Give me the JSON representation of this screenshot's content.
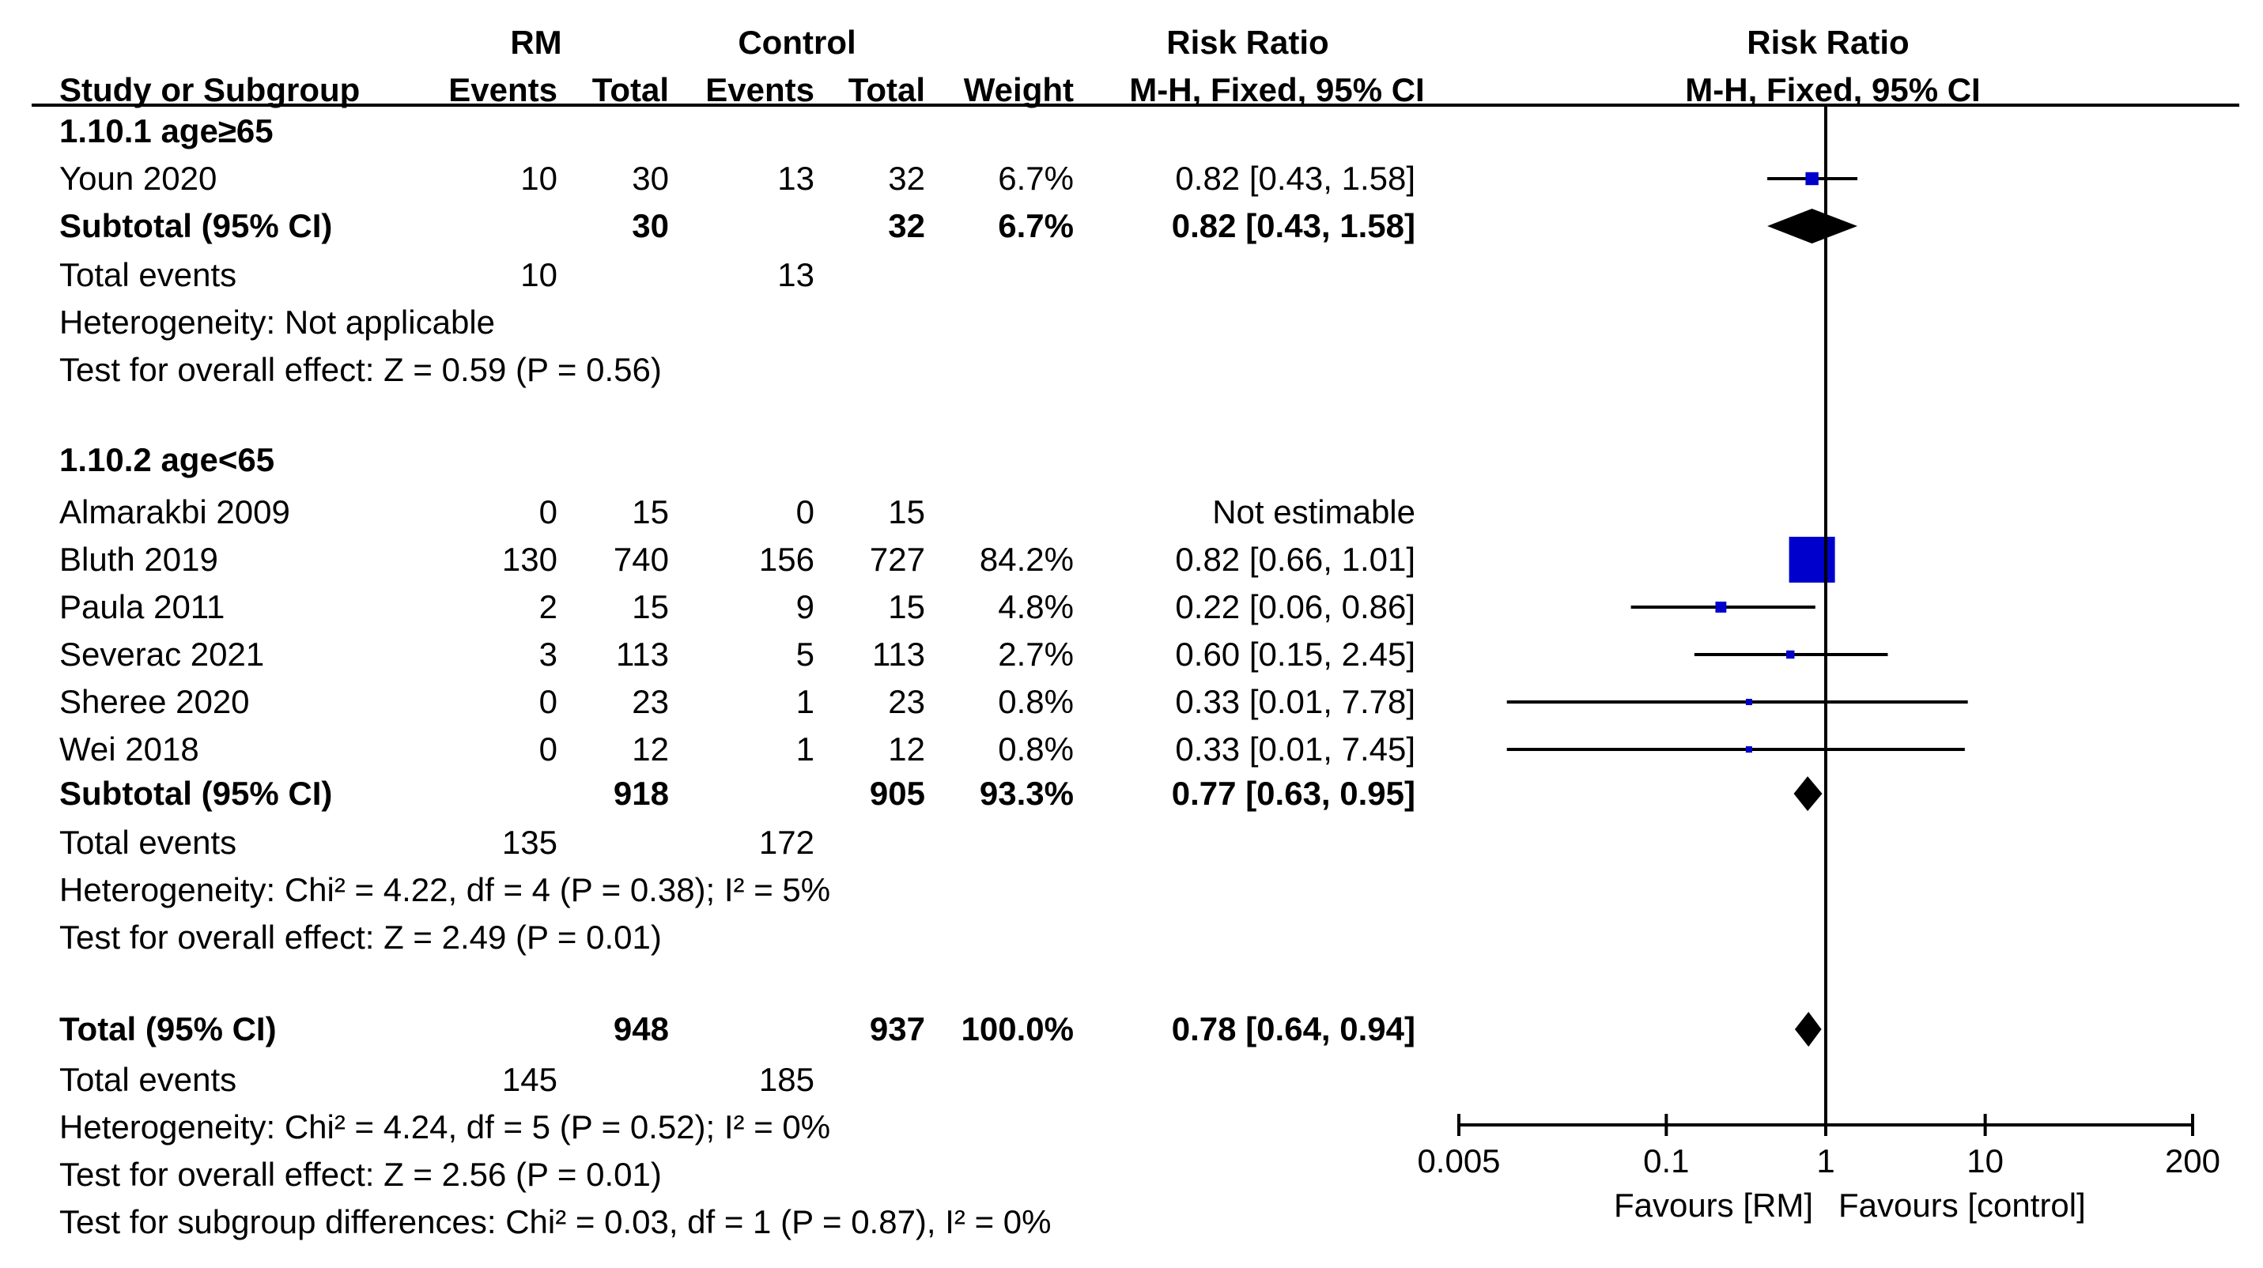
{
  "headers": {
    "group_rm": "RM",
    "group_control": "Control",
    "risk_ratio": "Risk Ratio",
    "study_or_subgroup": "Study or Subgroup",
    "events": "Events",
    "total": "Total",
    "weight": "Weight",
    "method": "M-H, Fixed, 95% CI",
    "plot_title": "Risk Ratio",
    "plot_method": "M-H, Fixed, 95% CI"
  },
  "subgroups": [
    {
      "title": "1.10.1 age≥65",
      "studies": [
        {
          "name": "Youn 2020",
          "e1": "10",
          "t1": "30",
          "e2": "13",
          "t2": "32",
          "weight": "6.7%",
          "ci_text": "0.82 [0.43, 1.58]",
          "rr": 0.82,
          "lo": 0.43,
          "hi": 1.58,
          "w": 6.7
        }
      ],
      "subtotal": {
        "label": "Subtotal (95% CI)",
        "t1": "30",
        "t2": "32",
        "weight": "6.7%",
        "ci_text": "0.82 [0.43, 1.58]",
        "rr": 0.82,
        "lo": 0.43,
        "hi": 1.58
      },
      "total_events": {
        "label": "Total events",
        "e1": "10",
        "e2": "13"
      },
      "heterogeneity": "Heterogeneity: Not applicable",
      "overall_effect": "Test for overall effect: Z = 0.59 (P = 0.56)"
    },
    {
      "title": "1.10.2 age<65",
      "studies": [
        {
          "name": "Almarakbi 2009",
          "e1": "0",
          "t1": "15",
          "e2": "0",
          "t2": "15",
          "weight": "",
          "ci_text": "Not estimable",
          "rr": null,
          "lo": null,
          "hi": null,
          "w": 0
        },
        {
          "name": "Bluth 2019",
          "e1": "130",
          "t1": "740",
          "e2": "156",
          "t2": "727",
          "weight": "84.2%",
          "ci_text": "0.82 [0.66, 1.01]",
          "rr": 0.82,
          "lo": 0.66,
          "hi": 1.01,
          "w": 84.2
        },
        {
          "name": "Paula 2011",
          "e1": "2",
          "t1": "15",
          "e2": "9",
          "t2": "15",
          "weight": "4.8%",
          "ci_text": "0.22 [0.06, 0.86]",
          "rr": 0.22,
          "lo": 0.06,
          "hi": 0.86,
          "w": 4.8
        },
        {
          "name": "Severac 2021",
          "e1": "3",
          "t1": "113",
          "e2": "5",
          "t2": "113",
          "weight": "2.7%",
          "ci_text": "0.60 [0.15, 2.45]",
          "rr": 0.6,
          "lo": 0.15,
          "hi": 2.45,
          "w": 2.7
        },
        {
          "name": "Sheree 2020",
          "e1": "0",
          "t1": "23",
          "e2": "1",
          "t2": "23",
          "weight": "0.8%",
          "ci_text": "0.33 [0.01, 7.78]",
          "rr": 0.33,
          "lo": 0.01,
          "hi": 7.78,
          "w": 0.8
        },
        {
          "name": "Wei 2018",
          "e1": "0",
          "t1": "12",
          "e2": "1",
          "t2": "12",
          "weight": "0.8%",
          "ci_text": "0.33 [0.01, 7.45]",
          "rr": 0.33,
          "lo": 0.01,
          "hi": 7.45,
          "w": 0.8
        }
      ],
      "subtotal": {
        "label": "Subtotal (95% CI)",
        "t1": "918",
        "t2": "905",
        "weight": "93.3%",
        "ci_text": "0.77 [0.63, 0.95]",
        "rr": 0.77,
        "lo": 0.63,
        "hi": 0.95
      },
      "total_events": {
        "label": "Total events",
        "e1": "135",
        "e2": "172"
      },
      "heterogeneity": "Heterogeneity: Chi² = 4.22, df = 4 (P = 0.38); I² = 5%",
      "overall_effect": "Test for overall effect: Z = 2.49 (P = 0.01)"
    }
  ],
  "overall": {
    "label": "Total (95% CI)",
    "t1": "948",
    "t2": "937",
    "weight": "100.0%",
    "ci_text": "0.78 [0.64, 0.94]",
    "rr": 0.78,
    "lo": 0.64,
    "hi": 0.94,
    "total_events": {
      "label": "Total events",
      "e1": "145",
      "e2": "185"
    },
    "heterogeneity": "Heterogeneity: Chi² = 4.24, df = 5 (P = 0.52); I² = 0%",
    "overall_effect": "Test for overall effect: Z = 2.56 (P = 0.01)",
    "subgroup_differences": "Test for subgroup differences: Chi² = 0.03, df = 1 (P = 0.87), I² = 0%"
  },
  "colors": {
    "study_marker": "#0000cc",
    "diamond": "#000000",
    "line": "#000000"
  },
  "chart_data": {
    "type": "forest",
    "title": "Risk Ratio",
    "subtitle": "M-H, Fixed, 95% CI",
    "x_scale": "log",
    "xlim": [
      0.005,
      200
    ],
    "ticks": [
      0.005,
      0.1,
      1,
      10,
      200
    ],
    "tick_labels": [
      "0.005",
      "0.1",
      "1",
      "10",
      "200"
    ],
    "null_value": 1,
    "favours_left": "Favours [RM]",
    "favours_right": "Favours [control]"
  }
}
